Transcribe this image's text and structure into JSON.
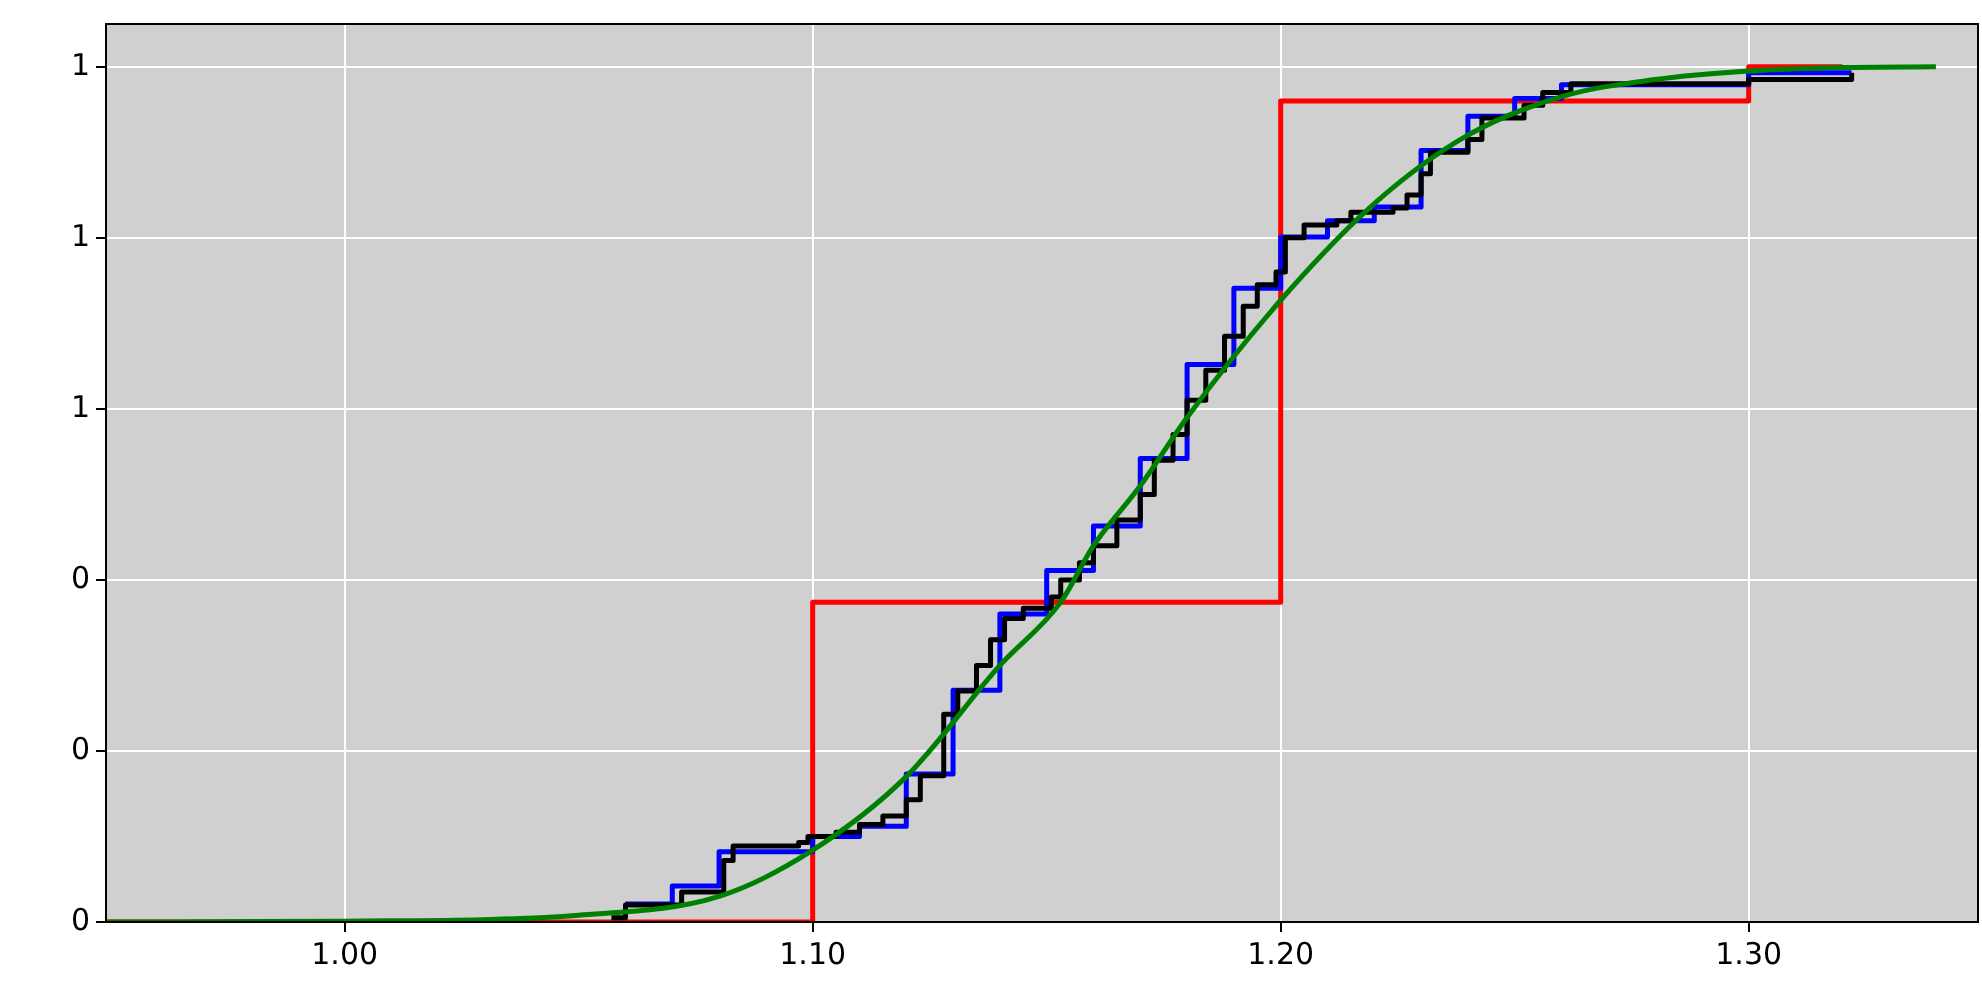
{
  "chart_data": {
    "type": "line",
    "xlim": [
      0.949,
      1.349
    ],
    "xticks": [
      {
        "value": 1.0,
        "label": "1.00"
      },
      {
        "value": 1.1,
        "label": "1.10"
      },
      {
        "value": 1.2,
        "label": "1.20"
      },
      {
        "value": 1.3,
        "label": "1.30"
      }
    ],
    "ylim": [
      0,
      1.05
    ],
    "yticks": [
      {
        "value": 0,
        "label": "0"
      },
      {
        "value": 0.2,
        "label": "0"
      },
      {
        "value": 0.4,
        "label": "0"
      },
      {
        "value": 0.6,
        "label": "1"
      },
      {
        "value": 0.8,
        "label": "1"
      },
      {
        "value": 1.0,
        "label": "1"
      }
    ],
    "grid": true,
    "legend": false,
    "marker": "none",
    "line_style": "solid",
    "series": [
      {
        "type": "step",
        "color": "#ff0000",
        "x": [
          0.949,
          1.1,
          1.2,
          1.3,
          1.32
        ],
        "values": [
          0,
          0.374,
          0.96,
          1.0,
          1.0
        ]
      },
      {
        "type": "step",
        "color": "#0000ff",
        "x": [
          1.06,
          1.07,
          1.08,
          1.1,
          1.11,
          1.12,
          1.13,
          1.14,
          1.15,
          1.16,
          1.17,
          1.18,
          1.19,
          1.2,
          1.21,
          1.22,
          1.23,
          1.24,
          1.25,
          1.26,
          1.3,
          1.322
        ],
        "values": [
          0.021,
          0.042,
          0.082,
          0.1,
          0.112,
          0.173,
          0.271,
          0.36,
          0.411,
          0.463,
          0.542,
          0.652,
          0.741,
          0.801,
          0.82,
          0.836,
          0.902,
          0.942,
          0.963,
          0.979,
          0.993,
          0.993
        ]
      },
      {
        "type": "step",
        "color": "#000000",
        "x": [
          1.057,
          1.06,
          1.072,
          1.081,
          1.083,
          1.097,
          1.099,
          1.105,
          1.11,
          1.115,
          1.12,
          1.123,
          1.128,
          1.131,
          1.135,
          1.138,
          1.141,
          1.145,
          1.151,
          1.153,
          1.157,
          1.16,
          1.165,
          1.17,
          1.173,
          1.177,
          1.18,
          1.184,
          1.188,
          1.192,
          1.195,
          1.199,
          1.201,
          1.205,
          1.212,
          1.215,
          1.224,
          1.227,
          1.23,
          1.232,
          1.24,
          1.243,
          1.252,
          1.256,
          1.262,
          1.3,
          1.322
        ],
        "values": [
          0.005,
          0.02,
          0.035,
          0.072,
          0.089,
          0.093,
          0.1,
          0.105,
          0.114,
          0.124,
          0.143,
          0.171,
          0.243,
          0.27,
          0.3,
          0.33,
          0.355,
          0.367,
          0.38,
          0.4,
          0.42,
          0.44,
          0.47,
          0.5,
          0.54,
          0.57,
          0.61,
          0.645,
          0.685,
          0.72,
          0.745,
          0.76,
          0.8,
          0.815,
          0.82,
          0.83,
          0.835,
          0.85,
          0.875,
          0.9,
          0.915,
          0.94,
          0.955,
          0.97,
          0.98,
          0.985,
          0.993
        ]
      },
      {
        "type": "line",
        "color": "#008000",
        "x": [
          0.949,
          1.0,
          1.05,
          1.08,
          1.1,
          1.12,
          1.14,
          1.153,
          1.16,
          1.17,
          1.18,
          1.2,
          1.22,
          1.24,
          1.26,
          1.28,
          1.3,
          1.32,
          1.34
        ],
        "values": [
          0,
          0.001,
          0.008,
          0.03,
          0.084,
          0.17,
          0.3,
          0.374,
          0.44,
          0.51,
          0.59,
          0.727,
          0.84,
          0.92,
          0.965,
          0.985,
          0.995,
          0.999,
          1.0
        ]
      }
    ]
  }
}
